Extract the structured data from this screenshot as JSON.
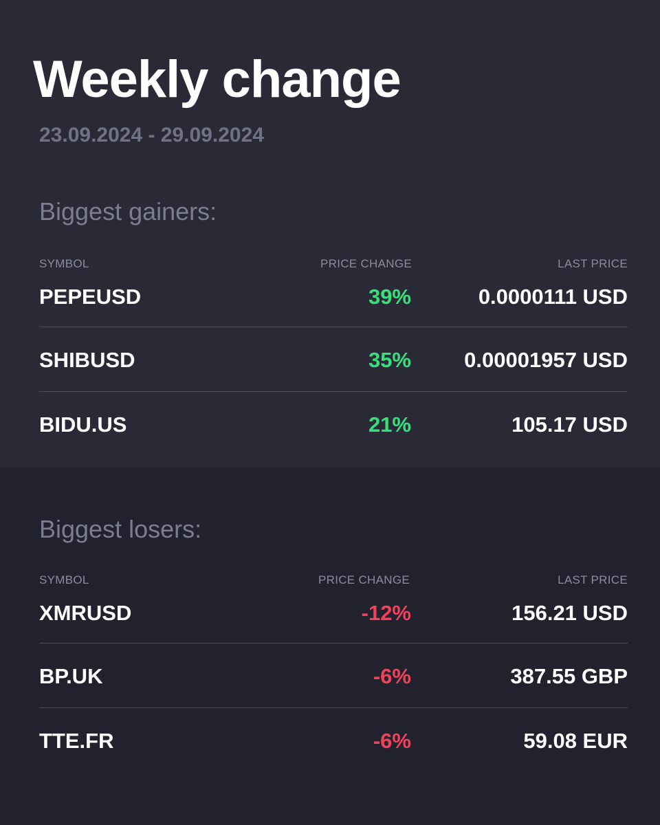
{
  "header": {
    "title": "Weekly change",
    "date_range": "23.09.2024 - 29.09.2024"
  },
  "columns": {
    "symbol": "SYMBOL",
    "price_change": "PRICE CHANGE",
    "last_price": "LAST PRICE"
  },
  "gainers": {
    "title": "Biggest gainers:",
    "rows": [
      {
        "symbol": "PEPEUSD",
        "change": "39%",
        "last_price": "0.0000111 USD"
      },
      {
        "symbol": "SHIBUSD",
        "change": "35%",
        "last_price": "0.00001957 USD"
      },
      {
        "symbol": "BIDU.US",
        "change": "21%",
        "last_price": "105.17 USD"
      }
    ]
  },
  "losers": {
    "title": "Biggest losers:",
    "rows": [
      {
        "symbol": "XMRUSD",
        "change": "-12%",
        "last_price": "156.21 USD"
      },
      {
        "symbol": "BP.UK",
        "change": "-6%",
        "last_price": "387.55 GBP"
      },
      {
        "symbol": "TTE.FR",
        "change": "-6%",
        "last_price": "59.08 EUR"
      }
    ]
  },
  "colors": {
    "gain": "#36e07a",
    "loss": "#f2415a",
    "top_background": "#292a36",
    "bottom_background": "#21222d"
  }
}
